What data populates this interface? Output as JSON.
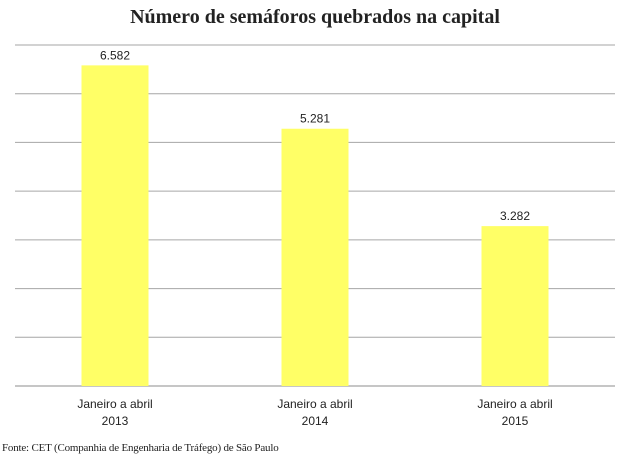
{
  "title": "Número de semáforos quebrados na capital",
  "source": "Fonte: CET (Companhia de Engenharia de Tráfego) de São Paulo",
  "colors": {
    "bar": "#ffff66",
    "grid": "#a6a6a6",
    "axis": "#8c8c8c",
    "text": "#222222"
  },
  "chart_data": {
    "type": "bar",
    "title": "Número de semáforos quebrados na capital",
    "categories": [
      [
        "Janeiro a abril",
        "2013"
      ],
      [
        "Janeiro a abril",
        "2014"
      ],
      [
        "Janeiro a abril",
        "2015"
      ]
    ],
    "values": [
      6582,
      5281,
      3282
    ],
    "value_labels": [
      "6.582",
      "5.281",
      "3.282"
    ],
    "ylim": [
      0,
      7000
    ],
    "y_gridline_step": 1000,
    "y_tick_labels_shown": false,
    "grid": true,
    "legend": "none"
  }
}
